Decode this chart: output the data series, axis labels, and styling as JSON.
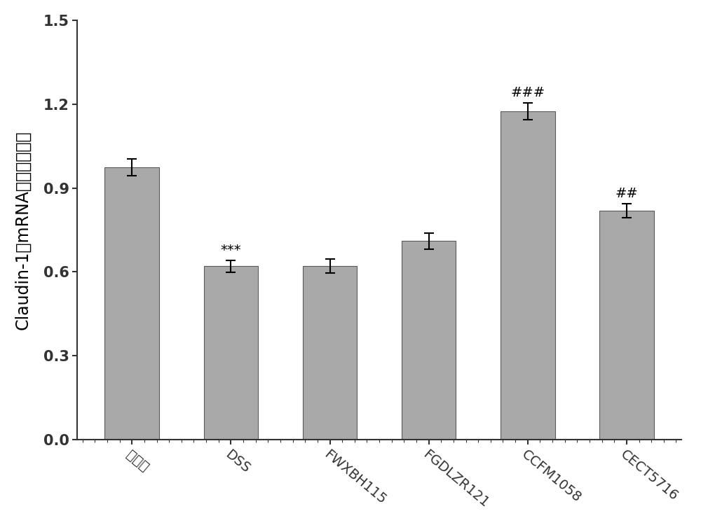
{
  "categories": [
    "正常组",
    "DSS",
    "FWXBH115",
    "FGDLZR121",
    "CCFM1058",
    "CECT5716"
  ],
  "values": [
    0.975,
    0.62,
    0.622,
    0.71,
    1.175,
    0.82
  ],
  "errors": [
    0.03,
    0.022,
    0.025,
    0.028,
    0.03,
    0.025
  ],
  "bar_color": "#A9A9A9",
  "bar_edgecolor": "#5a5a5a",
  "ylabel": "Claudin-1的mRNA相对表达水平",
  "ylim": [
    0,
    1.5
  ],
  "yticks": [
    0.0,
    0.3,
    0.6,
    0.9,
    1.2,
    1.5
  ],
  "annotations": [
    {
      "bar_idx": 1,
      "text": "***",
      "fontsize": 14
    },
    {
      "bar_idx": 4,
      "text": "###",
      "fontsize": 14
    },
    {
      "bar_idx": 5,
      "text": "##",
      "fontsize": 14
    }
  ],
  "bar_width": 0.55,
  "figsize": [
    10,
    7.5
  ],
  "dpi": 100,
  "background_color": "#ffffff",
  "spine_color": "#333333",
  "tick_color": "#333333",
  "ylabel_fontsize": 17,
  "xtick_fontsize": 14,
  "ytick_fontsize": 15,
  "xtick_rotation": -40,
  "ytick_bold": true
}
